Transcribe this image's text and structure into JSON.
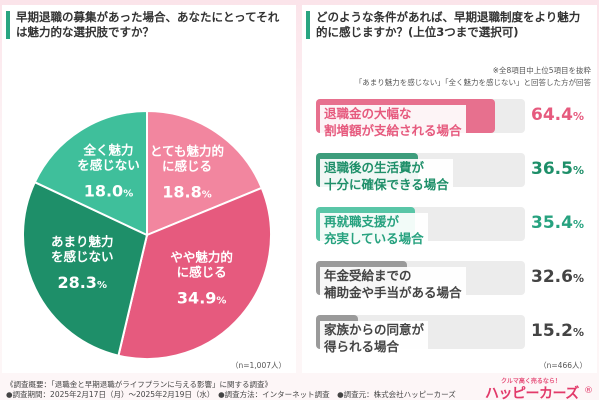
{
  "left": {
    "question": "早期退職の募集があった場合、あなたにとってそれは魅力的な選択肢ですか？",
    "n": "（n=1,007人）"
  },
  "right": {
    "question": "どのような条件があれば、早期退職制度をより魅力的に感じますか？(上位3つまで選択可)",
    "note_1": "※全8項目中上位5項目を抜粋",
    "note_2": "「あまり魅力を感じない」「全く魅力を感じない」と回答した方が回答",
    "n": "（n=466人）"
  },
  "footer": {
    "line_1": "《調査概要：「退職金と早期退職がライフプランに与える影響」に関する調査》",
    "line_2": "●調査期間：2025年2月17日（月）〜2025年2月19日（水）　●調査方法：インターネット調査　●調査元：株式会社ハッピーカーズ",
    "logo_tagline": "クルマ高く売るなら！",
    "logo_name": "ハッピーカーズ",
    "logo_mark": "®"
  },
  "colors": {
    "pink": "#e65a7e",
    "pink_light": "#f2869f",
    "green_dark": "#1e8f69",
    "green_mid": "#27a27f",
    "green_light": "#3fbf9b",
    "gray": "#8c8c8c",
    "track": "#ececec"
  },
  "chart_data": [
    {
      "type": "pie",
      "slices": [
        {
          "label": "とても魅力的に感じる",
          "label_lines": [
            "とても魅力的",
            "に感じる"
          ],
          "value": 18.8,
          "value_text": "18.8",
          "color": "#f2869f"
        },
        {
          "label": "やや魅力的に感じる",
          "label_lines": [
            "やや魅力的",
            "に感じる"
          ],
          "value": 34.9,
          "value_text": "34.9",
          "color": "#e65a7e"
        },
        {
          "label": "あまり魅力を感じない",
          "label_lines": [
            "あまり魅力",
            "を感じない"
          ],
          "value": 28.3,
          "value_text": "28.3",
          "color": "#1e8f69"
        },
        {
          "label": "全く魅力を感じない",
          "label_lines": [
            "全く魅力",
            "を感じない"
          ],
          "value": 18.0,
          "value_text": "18.0",
          "color": "#3fbf9b"
        }
      ],
      "unit": "%"
    },
    {
      "type": "bar",
      "orientation": "horizontal",
      "categories": [
        "退職金の大幅な割増額が支給される場合",
        "退職後の生活費が十分に確保できる場合",
        "再就職支援が充実している場合",
        "年金受給までの補助金や手当がある場合",
        "家族からの同意が得られる場合"
      ],
      "category_lines": [
        [
          "退職金の大幅な",
          "割増額が支給される場合"
        ],
        [
          "退職後の生活費が",
          "十分に確保できる場合"
        ],
        [
          "再就職支援が",
          "充実している場合"
        ],
        [
          "年金受給までの",
          "補助金や手当がある場合"
        ],
        [
          "家族からの同意が",
          "得られる場合"
        ]
      ],
      "values": [
        64.4,
        36.5,
        35.4,
        32.6,
        15.2
      ],
      "value_texts": [
        "64.4",
        "36.5",
        "35.4",
        "32.6",
        "15.2"
      ],
      "colors": [
        "#e65a7e",
        "#1e8f69",
        "#3fbf9b",
        "#8c8c8c",
        "#8c8c8c"
      ],
      "label_colors": [
        "#e65a7e",
        "#1e8f69",
        "#27a27f",
        "#444444",
        "#444444"
      ],
      "value_colors": [
        "#e65a7e",
        "#1e8f69",
        "#27a27f",
        "#444444",
        "#444444"
      ],
      "unit": "%",
      "xlim": [
        0,
        75
      ]
    }
  ]
}
